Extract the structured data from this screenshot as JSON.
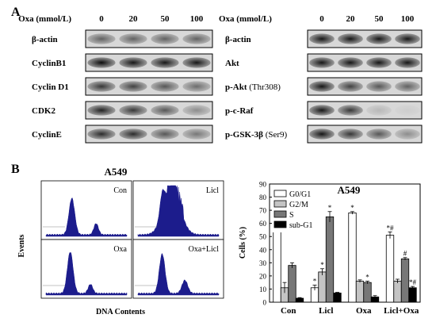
{
  "panel_a": {
    "label": "A",
    "left": {
      "header_label": "Oxa (mmol/L)",
      "doses": [
        "0",
        "20",
        "50",
        "100"
      ],
      "rows": [
        {
          "label": "β-actin",
          "intensity": [
            0.55,
            0.55,
            0.55,
            0.55
          ]
        },
        {
          "label": "CyclinB1",
          "intensity": [
            0.95,
            0.9,
            0.9,
            0.9
          ]
        },
        {
          "label": "Cyclin D1",
          "intensity": [
            0.75,
            0.7,
            0.6,
            0.5
          ]
        },
        {
          "label": "CDK2",
          "intensity": [
            0.85,
            0.75,
            0.6,
            0.35
          ]
        },
        {
          "label": "CyclinE",
          "intensity": [
            0.8,
            0.8,
            0.6,
            0.45
          ]
        }
      ]
    },
    "right": {
      "header_label": "Oxa (mmol/L)",
      "doses": [
        "0",
        "20",
        "50",
        "100"
      ],
      "rows": [
        {
          "label": "β-actin",
          "suffix": "",
          "intensity": [
            0.9,
            0.9,
            0.9,
            0.9
          ]
        },
        {
          "label": "Akt",
          "suffix": "",
          "intensity": [
            0.9,
            0.9,
            0.9,
            0.9
          ]
        },
        {
          "label": "p-Akt",
          "suffix": "(Thr308)",
          "intensity": [
            0.9,
            0.7,
            0.6,
            0.55
          ]
        },
        {
          "label": "p-c-Raf",
          "suffix": "",
          "intensity": [
            0.9,
            0.75,
            0.15,
            0.05
          ]
        },
        {
          "label": "p-GSK-3β",
          "suffix": "(Ser9)",
          "intensity": [
            0.9,
            0.75,
            0.6,
            0.35
          ]
        }
      ]
    }
  },
  "panel_b": {
    "label": "B",
    "flow": {
      "title": "A549",
      "ylabel": "Events",
      "xlabel": "DNA Contents",
      "panels": [
        "Con",
        "Licl",
        "Oxa",
        "Oxa+Licl"
      ]
    },
    "chart_data": {
      "type": "bar",
      "title": "A549",
      "ylabel": "Cells (%)",
      "xlabel": "",
      "ylim": [
        0,
        90
      ],
      "yticks": [
        "0",
        "10",
        "20",
        "30",
        "40",
        "50",
        "60",
        "70",
        "80",
        "90"
      ],
      "categories": [
        "Con",
        "Licl",
        "Oxa",
        "Licl+Oxa"
      ],
      "legend_position": "top-left",
      "series": [
        {
          "name": "G0/G1",
          "color": "#ffffff",
          "values": [
            60,
            11,
            68,
            51
          ],
          "errors": [
            2.5,
            2,
            1,
            2.5
          ],
          "marks": [
            "",
            "*",
            "*",
            "*#"
          ]
        },
        {
          "name": "G2/M",
          "color": "#c4c4c4",
          "values": [
            11,
            23,
            16,
            16
          ],
          "errors": [
            4,
            2.5,
            1,
            1.5
          ],
          "marks": [
            "",
            "*",
            "",
            ""
          ]
        },
        {
          "name": "S",
          "color": "#777777",
          "values": [
            28,
            65,
            15,
            33
          ],
          "errors": [
            2,
            4,
            1,
            1
          ],
          "marks": [
            "",
            "*",
            "*",
            "#"
          ]
        },
        {
          "name": "sub-G1",
          "color": "#000000",
          "values": [
            3,
            7,
            4,
            11
          ],
          "errors": [
            0.5,
            0.5,
            1,
            1
          ],
          "marks": [
            "",
            "",
            "",
            "*#"
          ]
        }
      ]
    }
  }
}
